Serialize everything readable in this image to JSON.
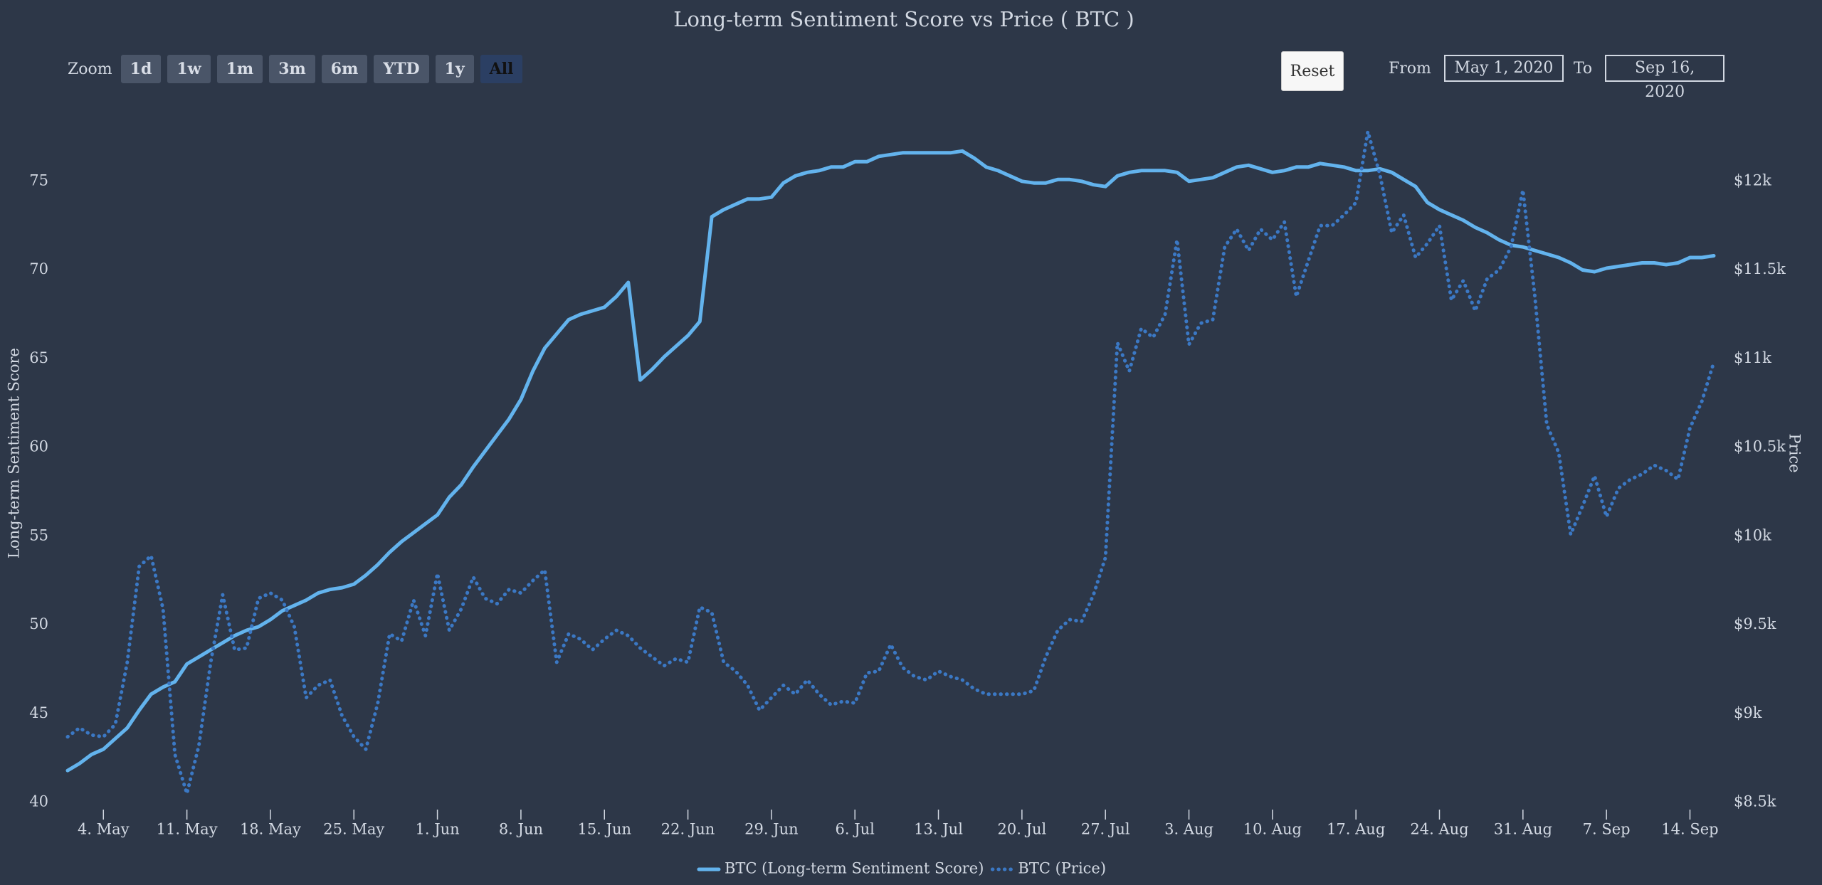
{
  "chart_data": {
    "type": "line",
    "title": "Long-term Sentiment Score vs Price ( BTC )",
    "x": [
      "2020-05-01",
      "2020-05-02",
      "2020-05-03",
      "2020-05-04",
      "2020-05-05",
      "2020-05-06",
      "2020-05-07",
      "2020-05-08",
      "2020-05-09",
      "2020-05-10",
      "2020-05-11",
      "2020-05-12",
      "2020-05-13",
      "2020-05-14",
      "2020-05-15",
      "2020-05-16",
      "2020-05-17",
      "2020-05-18",
      "2020-05-19",
      "2020-05-20",
      "2020-05-21",
      "2020-05-22",
      "2020-05-23",
      "2020-05-24",
      "2020-05-25",
      "2020-05-26",
      "2020-05-27",
      "2020-05-28",
      "2020-05-29",
      "2020-05-30",
      "2020-05-31",
      "2020-06-01",
      "2020-06-02",
      "2020-06-03",
      "2020-06-04",
      "2020-06-05",
      "2020-06-06",
      "2020-06-07",
      "2020-06-08",
      "2020-06-09",
      "2020-06-10",
      "2020-06-11",
      "2020-06-12",
      "2020-06-13",
      "2020-06-14",
      "2020-06-15",
      "2020-06-16",
      "2020-06-17",
      "2020-06-18",
      "2020-06-19",
      "2020-06-20",
      "2020-06-21",
      "2020-06-22",
      "2020-06-23",
      "2020-06-24",
      "2020-06-25",
      "2020-06-26",
      "2020-06-27",
      "2020-06-28",
      "2020-06-29",
      "2020-06-30",
      "2020-07-01",
      "2020-07-02",
      "2020-07-03",
      "2020-07-04",
      "2020-07-05",
      "2020-07-06",
      "2020-07-07",
      "2020-07-08",
      "2020-07-09",
      "2020-07-10",
      "2020-07-11",
      "2020-07-12",
      "2020-07-13",
      "2020-07-14",
      "2020-07-15",
      "2020-07-16",
      "2020-07-17",
      "2020-07-18",
      "2020-07-19",
      "2020-07-20",
      "2020-07-21",
      "2020-07-22",
      "2020-07-23",
      "2020-07-24",
      "2020-07-25",
      "2020-07-26",
      "2020-07-27",
      "2020-07-28",
      "2020-07-29",
      "2020-07-30",
      "2020-07-31",
      "2020-08-01",
      "2020-08-02",
      "2020-08-03",
      "2020-08-04",
      "2020-08-05",
      "2020-08-06",
      "2020-08-07",
      "2020-08-08",
      "2020-08-09",
      "2020-08-10",
      "2020-08-11",
      "2020-08-12",
      "2020-08-13",
      "2020-08-14",
      "2020-08-15",
      "2020-08-16",
      "2020-08-17",
      "2020-08-18",
      "2020-08-19",
      "2020-08-20",
      "2020-08-21",
      "2020-08-22",
      "2020-08-23",
      "2020-08-24",
      "2020-08-25",
      "2020-08-26",
      "2020-08-27",
      "2020-08-28",
      "2020-08-29",
      "2020-08-30",
      "2020-08-31",
      "2020-09-01",
      "2020-09-02",
      "2020-09-03",
      "2020-09-04",
      "2020-09-05",
      "2020-09-06",
      "2020-09-07",
      "2020-09-08",
      "2020-09-09",
      "2020-09-10",
      "2020-09-11",
      "2020-09-12",
      "2020-09-13",
      "2020-09-14",
      "2020-09-15",
      "2020-09-16"
    ],
    "series": [
      {
        "name": "BTC (Long-term Sentiment Score)",
        "color": "#63b3ed",
        "style": "solid",
        "axis": "y",
        "values": [
          41.8,
          42.2,
          42.7,
          43.0,
          43.6,
          44.2,
          45.2,
          46.1,
          46.5,
          46.8,
          47.8,
          48.2,
          48.6,
          49.0,
          49.4,
          49.7,
          49.9,
          50.3,
          50.8,
          51.1,
          51.4,
          51.8,
          52.0,
          52.1,
          52.3,
          52.8,
          53.4,
          54.1,
          54.7,
          55.2,
          55.7,
          56.2,
          57.2,
          57.9,
          58.9,
          59.8,
          60.7,
          61.6,
          62.7,
          64.3,
          65.6,
          66.4,
          67.2,
          67.5,
          67.7,
          67.9,
          68.5,
          69.3,
          63.8,
          64.4,
          65.1,
          65.7,
          66.3,
          67.1,
          73.0,
          73.4,
          73.7,
          74.0,
          74.0,
          74.1,
          74.9,
          75.3,
          75.5,
          75.6,
          75.8,
          75.8,
          76.1,
          76.1,
          76.4,
          76.5,
          76.6,
          76.6,
          76.6,
          76.6,
          76.6,
          76.7,
          76.3,
          75.8,
          75.6,
          75.3,
          75.0,
          74.9,
          74.9,
          75.1,
          75.1,
          75.0,
          74.8,
          74.7,
          75.3,
          75.5,
          75.6,
          75.6,
          75.6,
          75.5,
          75.0,
          75.1,
          75.2,
          75.5,
          75.8,
          75.9,
          75.7,
          75.5,
          75.6,
          75.8,
          75.8,
          76.0,
          75.9,
          75.8,
          75.6,
          75.6,
          75.7,
          75.5,
          75.1,
          74.7,
          73.8,
          73.4,
          73.1,
          72.8,
          72.4,
          72.1,
          71.7,
          71.4,
          71.3,
          71.1,
          70.9,
          70.7,
          70.4,
          70.0,
          69.9,
          70.1,
          70.2,
          70.3,
          70.4,
          70.4,
          70.3,
          70.4,
          70.7,
          70.7,
          70.8
        ]
      },
      {
        "name": "BTC (Price)",
        "color": "#3b78c4",
        "style": "dotted",
        "axis": "y2",
        "values": [
          8870,
          8920,
          8880,
          8870,
          8940,
          9290,
          9830,
          9890,
          9590,
          8770,
          8550,
          8820,
          9290,
          9670,
          9360,
          9370,
          9650,
          9680,
          9640,
          9490,
          9090,
          9160,
          9190,
          8990,
          8870,
          8800,
          9060,
          9450,
          9410,
          9640,
          9440,
          9790,
          9470,
          9590,
          9770,
          9650,
          9620,
          9700,
          9680,
          9750,
          9810,
          9290,
          9450,
          9420,
          9360,
          9420,
          9470,
          9440,
          9370,
          9320,
          9270,
          9310,
          9290,
          9600,
          9570,
          9290,
          9240,
          9160,
          9020,
          9090,
          9160,
          9110,
          9190,
          9110,
          9050,
          9070,
          9060,
          9230,
          9240,
          9390,
          9260,
          9210,
          9190,
          9240,
          9210,
          9190,
          9140,
          9110,
          9110,
          9110,
          9110,
          9130,
          9320,
          9470,
          9530,
          9520,
          9670,
          9880,
          11090,
          10930,
          11170,
          11120,
          11250,
          11670,
          11080,
          11200,
          11220,
          11630,
          11730,
          11610,
          11730,
          11670,
          11770,
          11350,
          11550,
          11750,
          11750,
          11810,
          11880,
          12280,
          12040,
          11710,
          11810,
          11570,
          11650,
          11750,
          11330,
          11440,
          11270,
          11450,
          11500,
          11630,
          11950,
          11350,
          10630,
          10470,
          10010,
          10170,
          10340,
          10110,
          10270,
          10320,
          10350,
          10400,
          10370,
          10320,
          10610,
          10760,
          10980
        ]
      }
    ],
    "xlim": [
      "2020-05-01",
      "2020-09-16"
    ],
    "xticks": [
      {
        "value": "2020-05-04",
        "label": "4. May"
      },
      {
        "value": "2020-05-11",
        "label": "11. May"
      },
      {
        "value": "2020-05-18",
        "label": "18. May"
      },
      {
        "value": "2020-05-25",
        "label": "25. May"
      },
      {
        "value": "2020-06-01",
        "label": "1. Jun"
      },
      {
        "value": "2020-06-08",
        "label": "8. Jun"
      },
      {
        "value": "2020-06-15",
        "label": "15. Jun"
      },
      {
        "value": "2020-06-22",
        "label": "22. Jun"
      },
      {
        "value": "2020-06-29",
        "label": "29. Jun"
      },
      {
        "value": "2020-07-06",
        "label": "6. Jul"
      },
      {
        "value": "2020-07-13",
        "label": "13. Jul"
      },
      {
        "value": "2020-07-20",
        "label": "20. Jul"
      },
      {
        "value": "2020-07-27",
        "label": "27. Jul"
      },
      {
        "value": "2020-08-03",
        "label": "3. Aug"
      },
      {
        "value": "2020-08-10",
        "label": "10. Aug"
      },
      {
        "value": "2020-08-17",
        "label": "17. Aug"
      },
      {
        "value": "2020-08-24",
        "label": "24. Aug"
      },
      {
        "value": "2020-08-31",
        "label": "31. Aug"
      },
      {
        "value": "2020-09-07",
        "label": "7. Sep"
      },
      {
        "value": "2020-09-14",
        "label": "14. Sep"
      }
    ],
    "ylim": [
      40,
      80
    ],
    "yticks": [
      40,
      45,
      50,
      55,
      60,
      65,
      70,
      75
    ],
    "ylabel": "Long-term Sentiment Score",
    "y2lim": [
      8500,
      12500
    ],
    "y2ticks": [
      {
        "value": 8500,
        "label": "$8.5k"
      },
      {
        "value": 9000,
        "label": "$9k"
      },
      {
        "value": 9500,
        "label": "$9.5k"
      },
      {
        "value": 10000,
        "label": "$10k"
      },
      {
        "value": 10500,
        "label": "$10.5k"
      },
      {
        "value": 11000,
        "label": "$11k"
      },
      {
        "value": 11500,
        "label": "$11.5k"
      },
      {
        "value": 12000,
        "label": "$12k"
      }
    ],
    "y2label": "Price",
    "grid": false,
    "legend": "bottom"
  },
  "controls": {
    "zoom_label": "Zoom",
    "buttons": [
      "1d",
      "1w",
      "1m",
      "3m",
      "6m",
      "YTD",
      "1y",
      "All"
    ],
    "active_button": 7,
    "reset": "Reset",
    "from_label": "From",
    "from": "May 1, 2020",
    "to_label": "To",
    "to": "Sep 16, 2020"
  }
}
